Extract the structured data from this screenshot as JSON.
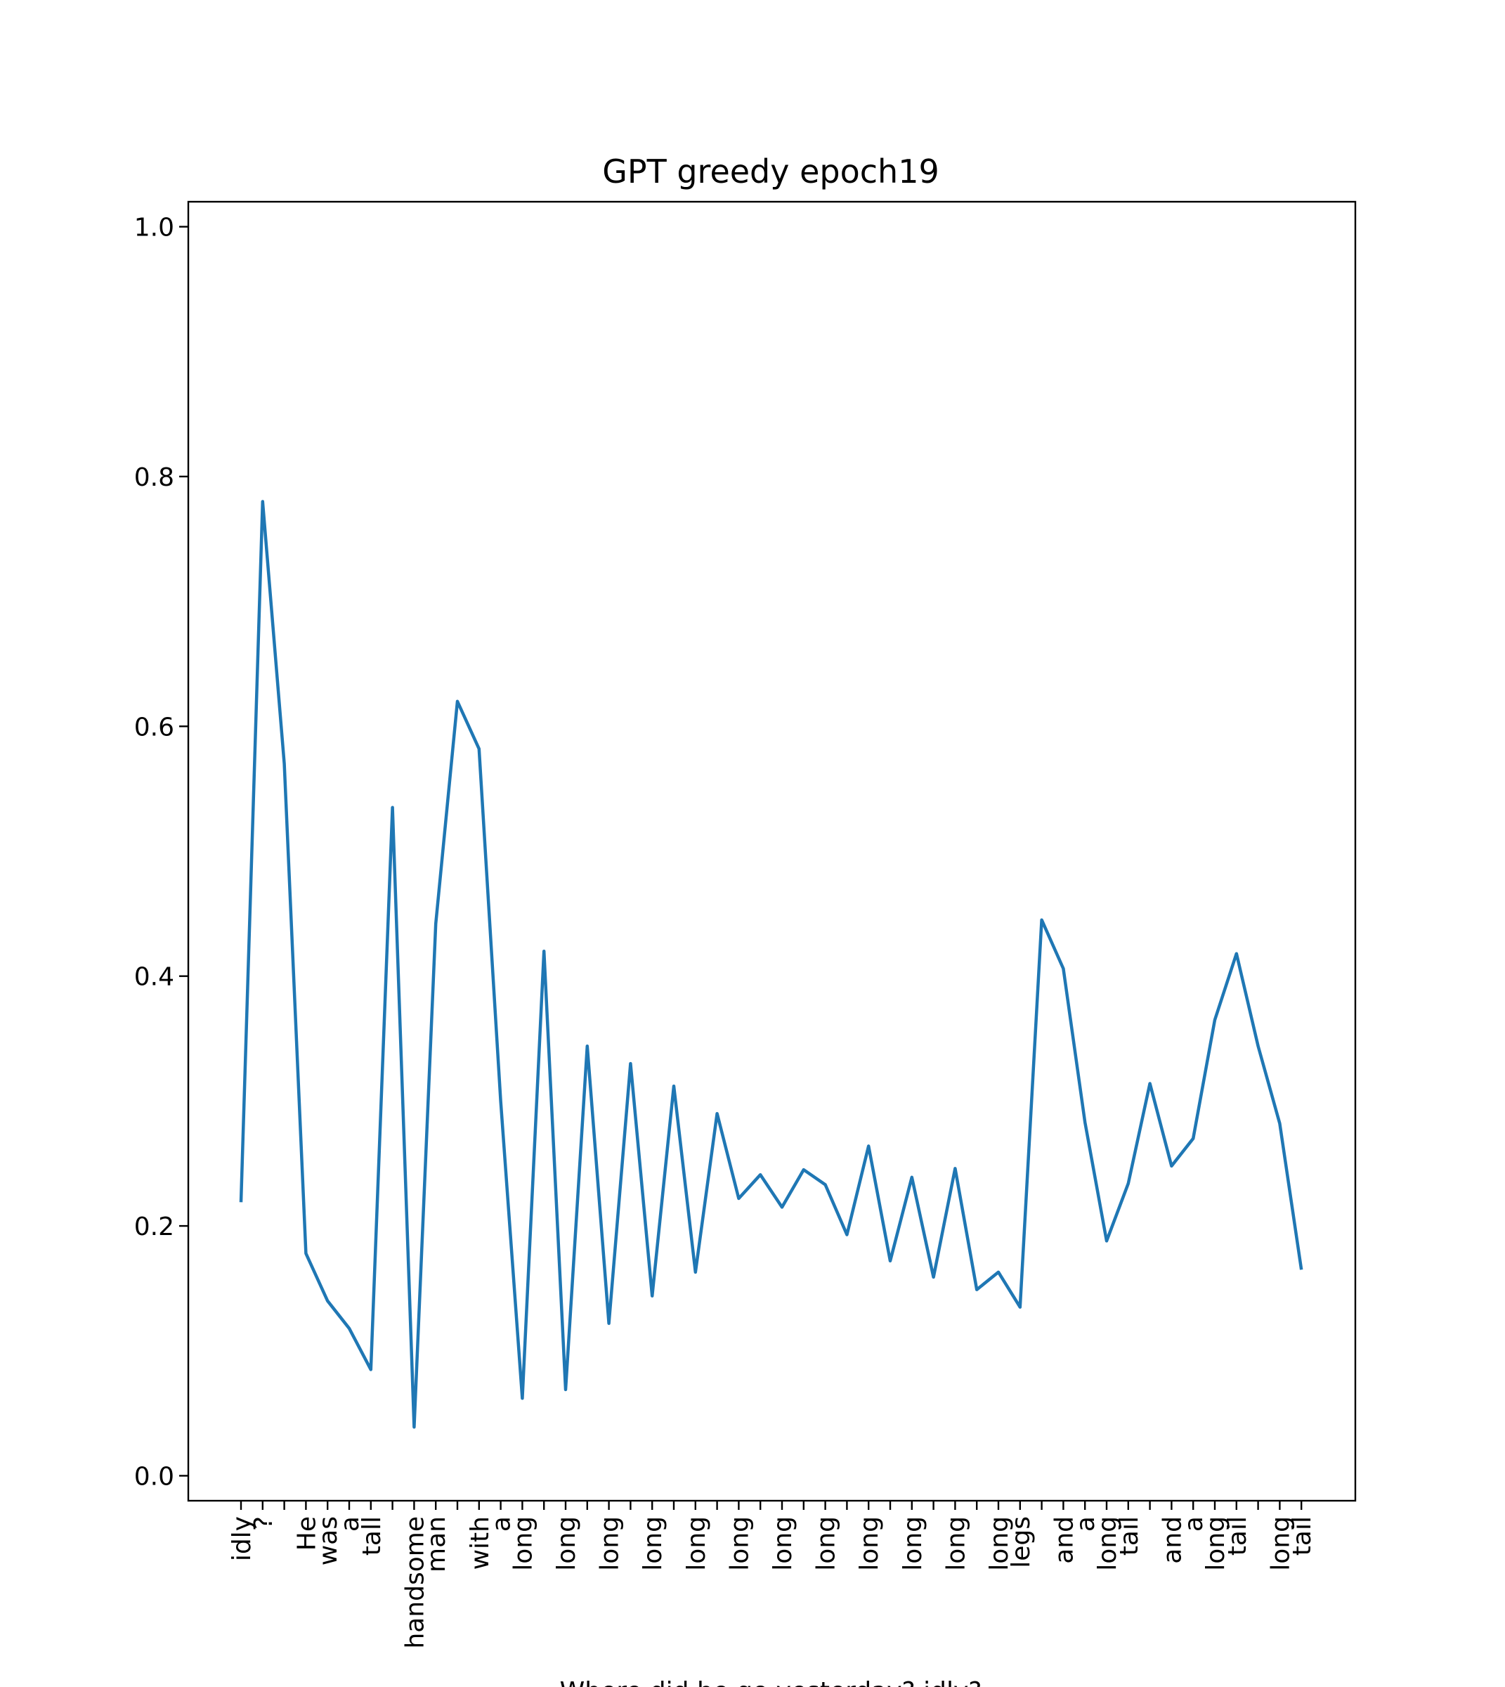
{
  "chart_data": {
    "type": "line",
    "title": "GPT greedy epoch19",
    "xlabel": "Where did he go yesterday? idly?",
    "ylabel": "",
    "ylim": [
      -0.02,
      1.02
    ],
    "yticks": [
      0.0,
      0.2,
      0.4,
      0.6,
      0.8,
      1.0
    ],
    "ytick_labels": [
      "0.0",
      "0.2",
      "0.4",
      "0.6",
      "0.8",
      "1.0"
    ],
    "grid": false,
    "categories": [
      "idly",
      "?",
      "",
      "He",
      "was",
      "a",
      "tall",
      "",
      "handsome",
      "man",
      "",
      "with",
      "a",
      "long",
      "",
      "long",
      "",
      "long",
      "",
      "long",
      "",
      "long",
      "",
      "long",
      "",
      "long",
      "",
      "long",
      "",
      "long",
      "",
      "long",
      "",
      "long",
      "",
      "long",
      "legs",
      "",
      "and",
      "a",
      "long",
      "tail",
      "",
      "and",
      "a",
      "long",
      "tail",
      "",
      "long",
      "tail"
    ],
    "series": [
      {
        "color": "#1f77b4",
        "values": [
          0.219,
          0.78,
          0.57,
          0.178,
          0.14,
          0.118,
          0.085,
          0.535,
          0.039,
          0.442,
          0.62,
          0.582,
          0.3,
          0.062,
          0.42,
          0.069,
          0.344,
          0.122,
          0.33,
          0.144,
          0.312,
          0.163,
          0.29,
          0.222,
          0.241,
          0.215,
          0.245,
          0.233,
          0.193,
          0.264,
          0.172,
          0.239,
          0.159,
          0.246,
          0.149,
          0.163,
          0.135,
          0.445,
          0.406,
          0.283,
          0.188,
          0.234,
          0.314,
          0.248,
          0.27,
          0.365,
          0.418,
          0.344,
          0.282,
          0.165
        ]
      }
    ]
  }
}
